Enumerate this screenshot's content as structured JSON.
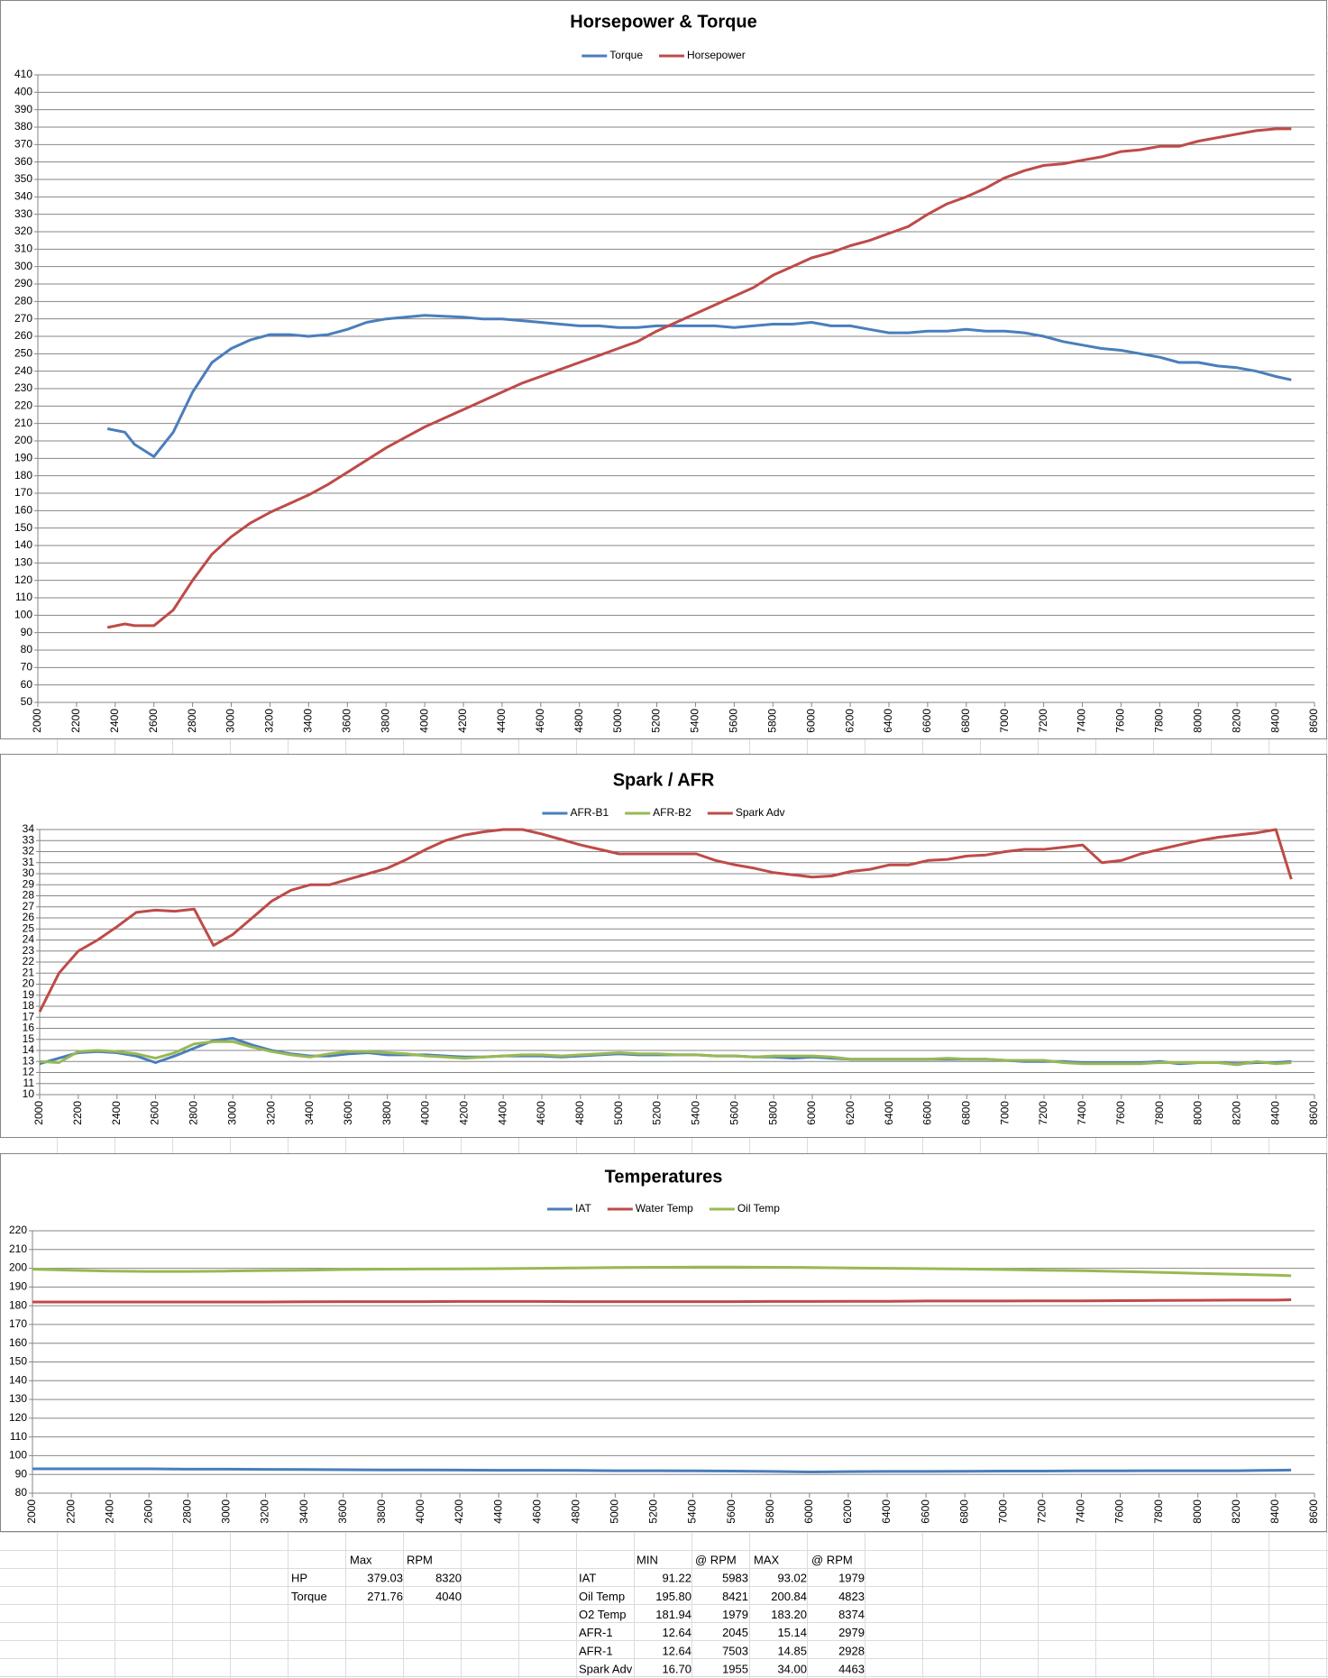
{
  "chart_data": [
    {
      "type": "line",
      "title": "Horsepower & Torque",
      "x": [
        2360,
        2450,
        2500,
        2600,
        2700,
        2800,
        2900,
        3000,
        3100,
        3200,
        3300,
        3400,
        3500,
        3600,
        3700,
        3800,
        3900,
        4000,
        4100,
        4200,
        4300,
        4400,
        4500,
        4600,
        4700,
        4800,
        4900,
        5000,
        5100,
        5200,
        5300,
        5400,
        5500,
        5600,
        5700,
        5800,
        5900,
        6000,
        6100,
        6200,
        6300,
        6400,
        6500,
        6600,
        6700,
        6800,
        6900,
        7000,
        7100,
        7200,
        7300,
        7400,
        7500,
        7600,
        7700,
        7800,
        7900,
        8000,
        8100,
        8200,
        8300,
        8400,
        8480
      ],
      "series": [
        {
          "name": "Torque",
          "color": "#4a7ebb",
          "values": [
            207,
            205,
            198,
            191,
            205,
            228,
            245,
            253,
            258,
            261,
            261,
            260,
            261,
            264,
            268,
            270,
            271,
            272,
            271.5,
            271,
            270,
            270,
            269,
            268,
            267,
            266,
            266,
            265,
            265,
            266,
            266,
            266,
            266,
            265,
            266,
            267,
            267,
            268,
            266,
            266,
            264,
            262,
            262,
            263,
            263,
            264,
            263,
            263,
            262,
            260,
            257,
            255,
            253,
            252,
            250,
            248,
            245,
            245,
            243,
            242,
            240,
            237,
            235
          ]
        },
        {
          "name": "Horsepower",
          "color": "#be4b48",
          "values": [
            93,
            95,
            94,
            94,
            103,
            120,
            135,
            145,
            153,
            159,
            164,
            169,
            175,
            182,
            189,
            196,
            202,
            208,
            213,
            218,
            223,
            228,
            233,
            237,
            241,
            245,
            249,
            253,
            257,
            263,
            268,
            273,
            278,
            283,
            288,
            295,
            300,
            305,
            308,
            312,
            315,
            319,
            323,
            330,
            336,
            340,
            345,
            351,
            355,
            358,
            359,
            361,
            363,
            366,
            367,
            369,
            369,
            372,
            374,
            376,
            378,
            379,
            379
          ]
        }
      ],
      "xlim": [
        2000,
        8600
      ],
      "xticks": [
        2000,
        2200,
        2400,
        2600,
        2800,
        3000,
        3200,
        3400,
        3600,
        3800,
        4000,
        4200,
        4400,
        4600,
        4800,
        5000,
        5200,
        5400,
        5600,
        5800,
        6000,
        6200,
        6400,
        6600,
        6800,
        7000,
        7200,
        7400,
        7600,
        7800,
        8000,
        8200,
        8400,
        8600
      ],
      "ylim": [
        50,
        410
      ],
      "yticks": [
        50,
        60,
        70,
        80,
        90,
        100,
        110,
        120,
        130,
        140,
        150,
        160,
        170,
        180,
        190,
        200,
        210,
        220,
        230,
        240,
        250,
        260,
        270,
        280,
        290,
        300,
        310,
        320,
        330,
        340,
        350,
        360,
        370,
        380,
        390,
        400,
        410
      ],
      "grid": true
    },
    {
      "type": "line",
      "title": "Spark / AFR",
      "x": [
        2000,
        2100,
        2200,
        2300,
        2400,
        2500,
        2600,
        2700,
        2800,
        2900,
        3000,
        3100,
        3200,
        3300,
        3400,
        3500,
        3600,
        3700,
        3800,
        3900,
        4000,
        4100,
        4200,
        4300,
        4400,
        4500,
        4600,
        4700,
        4800,
        4900,
        5000,
        5100,
        5200,
        5300,
        5400,
        5500,
        5600,
        5700,
        5800,
        5900,
        6000,
        6100,
        6200,
        6300,
        6400,
        6500,
        6600,
        6700,
        6800,
        6900,
        7000,
        7100,
        7200,
        7300,
        7400,
        7500,
        7600,
        7700,
        7800,
        7900,
        8000,
        8100,
        8200,
        8300,
        8400,
        8480
      ],
      "series": [
        {
          "name": "AFR-B1",
          "color": "#4a7ebb",
          "values": [
            12.8,
            13.3,
            13.8,
            13.9,
            13.8,
            13.5,
            12.9,
            13.5,
            14.2,
            14.9,
            15.1,
            14.5,
            14,
            13.7,
            13.5,
            13.5,
            13.7,
            13.8,
            13.6,
            13.6,
            13.6,
            13.5,
            13.4,
            13.4,
            13.5,
            13.5,
            13.5,
            13.4,
            13.5,
            13.6,
            13.7,
            13.6,
            13.6,
            13.6,
            13.6,
            13.5,
            13.5,
            13.4,
            13.4,
            13.3,
            13.4,
            13.3,
            13.2,
            13.2,
            13.2,
            13.2,
            13.2,
            13.2,
            13.2,
            13.2,
            13.1,
            13,
            13,
            13,
            12.9,
            12.9,
            12.9,
            12.9,
            13,
            12.8,
            12.9,
            12.9,
            12.8,
            12.9,
            12.9,
            13
          ]
        },
        {
          "name": "AFR-B2",
          "color": "#98b954",
          "values": [
            13,
            12.9,
            13.9,
            14,
            13.9,
            13.7,
            13.3,
            13.8,
            14.6,
            14.8,
            14.8,
            14.3,
            13.9,
            13.6,
            13.4,
            13.7,
            13.9,
            13.9,
            13.8,
            13.7,
            13.5,
            13.4,
            13.3,
            13.4,
            13.5,
            13.6,
            13.6,
            13.5,
            13.6,
            13.7,
            13.8,
            13.7,
            13.7,
            13.6,
            13.6,
            13.5,
            13.5,
            13.4,
            13.5,
            13.5,
            13.5,
            13.4,
            13.2,
            13.2,
            13.2,
            13.2,
            13.2,
            13.3,
            13.2,
            13.2,
            13.1,
            13.1,
            13.1,
            12.9,
            12.8,
            12.8,
            12.8,
            12.8,
            12.9,
            12.9,
            12.9,
            12.9,
            12.7,
            13,
            12.8,
            12.9
          ]
        },
        {
          "name": "Spark Adv",
          "color": "#be4b48",
          "values": [
            17.5,
            21,
            23,
            24,
            25.2,
            26.5,
            26.7,
            26.6,
            26.8,
            23.5,
            24.5,
            26,
            27.5,
            28.5,
            29,
            29,
            29.5,
            30,
            30.5,
            31.3,
            32.2,
            33,
            33.5,
            33.8,
            34,
            34,
            33.6,
            33.1,
            32.6,
            32.2,
            31.8,
            31.8,
            31.8,
            31.8,
            31.8,
            31.2,
            30.8,
            30.5,
            30.1,
            29.9,
            29.7,
            29.8,
            30.2,
            30.4,
            30.8,
            30.8,
            31.2,
            31.3,
            31.6,
            31.7,
            32,
            32.2,
            32.2,
            32.4,
            32.6,
            31,
            31.2,
            31.8,
            32.2,
            32.6,
            33,
            33.3,
            33.5,
            33.7,
            34,
            29.5
          ]
        }
      ],
      "xlim": [
        2000,
        8600
      ],
      "xticks": [
        2000,
        2200,
        2400,
        2600,
        2800,
        3000,
        3200,
        3400,
        3600,
        3800,
        4000,
        4200,
        4400,
        4600,
        4800,
        5000,
        5200,
        5400,
        5600,
        5800,
        6000,
        6200,
        6400,
        6600,
        6800,
        7000,
        7200,
        7400,
        7600,
        7800,
        8000,
        8200,
        8400,
        8600
      ],
      "ylim": [
        10,
        34
      ],
      "yticks": [
        10,
        11,
        12,
        13,
        14,
        15,
        16,
        17,
        18,
        19,
        20,
        21,
        22,
        23,
        24,
        25,
        26,
        27,
        28,
        29,
        30,
        31,
        32,
        33,
        34
      ],
      "grid": true
    },
    {
      "type": "line",
      "title": "Temperatures",
      "x": [
        2000,
        2200,
        2400,
        2600,
        2800,
        3000,
        3200,
        3400,
        3600,
        3800,
        4000,
        4200,
        4400,
        4600,
        4800,
        5000,
        5200,
        5400,
        5600,
        5800,
        6000,
        6200,
        6400,
        6600,
        6800,
        7000,
        7200,
        7400,
        7600,
        7800,
        8000,
        8200,
        8400,
        8480
      ],
      "series": [
        {
          "name": "IAT",
          "color": "#4a7ebb",
          "values": [
            93,
            93,
            93,
            93,
            92.8,
            92.8,
            92.7,
            92.6,
            92.5,
            92.4,
            92.4,
            92.3,
            92.2,
            92.2,
            92.1,
            92,
            92,
            91.9,
            91.8,
            91.6,
            91.3,
            91.5,
            91.6,
            91.6,
            91.7,
            91.8,
            91.8,
            91.9,
            91.9,
            92,
            92,
            92,
            92.2,
            92.3
          ]
        },
        {
          "name": "Water Temp",
          "color": "#be4b48",
          "values": [
            182,
            182,
            182,
            182,
            182,
            182,
            182,
            182.1,
            182.2,
            182.2,
            182.2,
            182.3,
            182.3,
            182.3,
            182.2,
            182.2,
            182.2,
            182.2,
            182.2,
            182.3,
            182.3,
            182.4,
            182.4,
            182.5,
            182.5,
            182.5,
            182.6,
            182.6,
            182.7,
            182.8,
            182.9,
            183,
            183,
            183.2
          ]
        },
        {
          "name": "Oil Temp",
          "color": "#98b954",
          "values": [
            199.5,
            199,
            198.5,
            198.3,
            198.3,
            198.5,
            198.8,
            199,
            199.3,
            199.5,
            199.6,
            199.7,
            199.8,
            200,
            200.2,
            200.4,
            200.5,
            200.6,
            200.6,
            200.5,
            200.4,
            200.2,
            200,
            199.8,
            199.6,
            199.3,
            199,
            198.7,
            198.3,
            197.8,
            197.3,
            196.8,
            196.3,
            196
          ]
        }
      ],
      "xlim": [
        2000,
        8600
      ],
      "xticks": [
        2000,
        2200,
        2400,
        2600,
        2800,
        3000,
        3200,
        3400,
        3600,
        3800,
        4000,
        4200,
        4400,
        4600,
        4800,
        5000,
        5200,
        5400,
        5600,
        5800,
        6000,
        6200,
        6400,
        6600,
        6800,
        7000,
        7200,
        7400,
        7600,
        7800,
        8000,
        8200,
        8400,
        8600
      ],
      "ylim": [
        80,
        220
      ],
      "yticks": [
        80,
        90,
        100,
        110,
        120,
        130,
        140,
        150,
        160,
        170,
        180,
        190,
        200,
        210,
        220
      ],
      "grid": true
    }
  ],
  "table": {
    "peaks": {
      "header": [
        "Max",
        "RPM"
      ],
      "rows": [
        [
          "HP",
          "379.03",
          "8320"
        ],
        [
          "Torque",
          "271.76",
          "4040"
        ]
      ]
    },
    "ranges": {
      "header": [
        "MIN",
        "@ RPM",
        "MAX",
        "@ RPM"
      ],
      "rows": [
        [
          "IAT",
          "91.22",
          "5983",
          "93.02",
          "1979"
        ],
        [
          "Oil Temp",
          "195.80",
          "8421",
          "200.84",
          "4823"
        ],
        [
          "O2 Temp",
          "181.94",
          "1979",
          "183.20",
          "8374"
        ],
        [
          "AFR-1",
          "12.64",
          "2045",
          "15.14",
          "2979"
        ],
        [
          "AFR-1",
          "12.64",
          "7503",
          "14.85",
          "2928"
        ],
        [
          "Spark Adv",
          "16.70",
          "1955",
          "34.00",
          "4463"
        ]
      ]
    }
  }
}
